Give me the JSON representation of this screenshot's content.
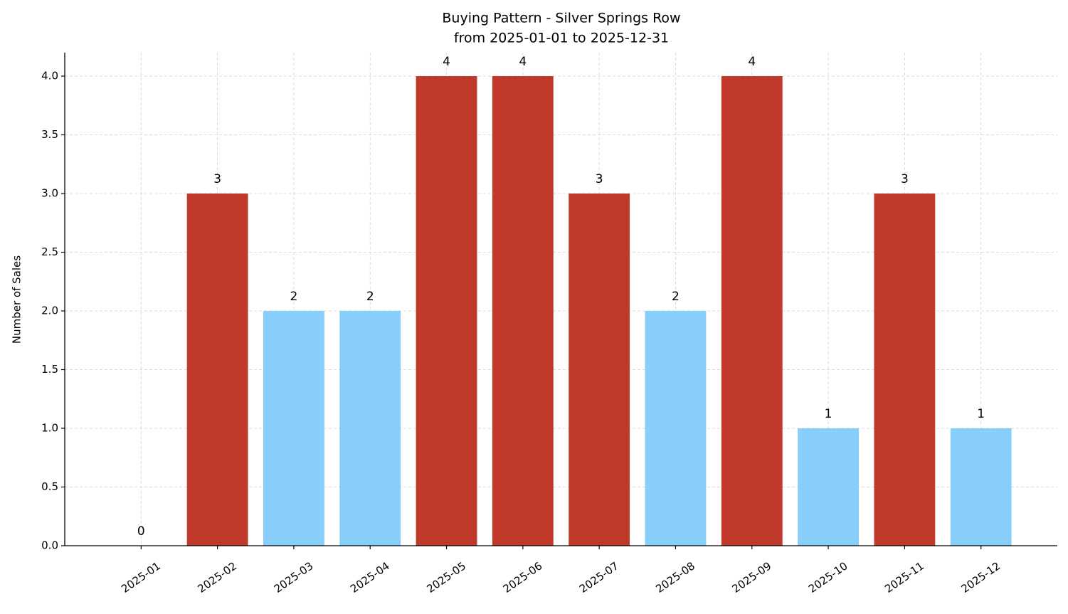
{
  "chart_data": {
    "type": "bar",
    "title": "Buying Pattern - Silver Springs Row",
    "subtitle": "from 2025-01-01 to 2025-12-31",
    "y_label": "Number of Sales",
    "categories": [
      "2025-01",
      "2025-02",
      "2025-03",
      "2025-04",
      "2025-05",
      "2025-06",
      "2025-07",
      "2025-08",
      "2025-09",
      "2025-10",
      "2025-11",
      "2025-12"
    ],
    "values": [
      0,
      3,
      2,
      2,
      4,
      4,
      3,
      2,
      4,
      1,
      3,
      1
    ],
    "colors": [
      "#87cefa",
      "#c0392b",
      "#87cefa",
      "#87cefa",
      "#c0392b",
      "#c0392b",
      "#c0392b",
      "#87cefa",
      "#c0392b",
      "#87cefa",
      "#c0392b",
      "#87cefa"
    ],
    "ylim": [
      0,
      4.2
    ],
    "yticks": [
      {
        "value": 0,
        "label": "0.0"
      },
      0.5,
      {
        "value": 1,
        "label": "1.0"
      },
      1.5,
      {
        "value": 2,
        "label": "2.0"
      },
      2.5,
      {
        "value": 3,
        "label": "3.0"
      },
      3.5,
      {
        "value": 4,
        "label": "4.0"
      }
    ],
    "grid": true
  }
}
